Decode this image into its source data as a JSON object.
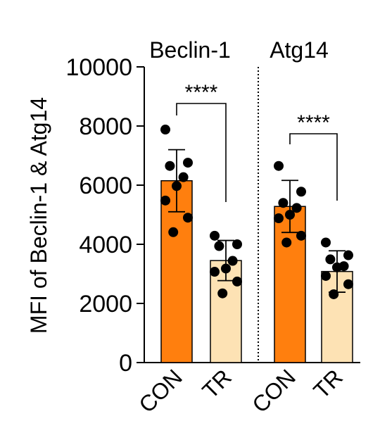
{
  "chart_data": {
    "type": "bar",
    "title_left": "Beclin-1",
    "title_right": "Atg14",
    "ylabel": "MFI of Beclin-1 & Atg14",
    "ylim": [
      0,
      10000
    ],
    "yticks": [
      "0",
      "2000",
      "4000",
      "6000",
      "8000",
      "10000"
    ],
    "ytick_values": [
      0,
      2000,
      4000,
      6000,
      8000,
      10000
    ],
    "categories": [
      "CON",
      "TR",
      "CON",
      "TR"
    ],
    "groups": [
      "Beclin-1",
      "Beclin-1",
      "Atg14",
      "Atg14"
    ],
    "means": [
      6150,
      3450,
      5280,
      3080
    ],
    "sd": [
      1050,
      680,
      880,
      700
    ],
    "colors": [
      "#FF7F0E",
      "#FDE2B4",
      "#FF7F0E",
      "#FDE2B4"
    ],
    "points": [
      [
        7880,
        6760,
        6650,
        6270,
        5970,
        5480,
        4900,
        4410
      ],
      [
        4290,
        4000,
        3940,
        3440,
        3180,
        3070,
        2740,
        2340
      ],
      [
        6650,
        5780,
        5400,
        5230,
        5000,
        4880,
        4290,
        4060
      ],
      [
        4060,
        3630,
        3490,
        3260,
        3220,
        2930,
        2650,
        2310
      ]
    ],
    "significance": [
      "****",
      "****"
    ]
  }
}
